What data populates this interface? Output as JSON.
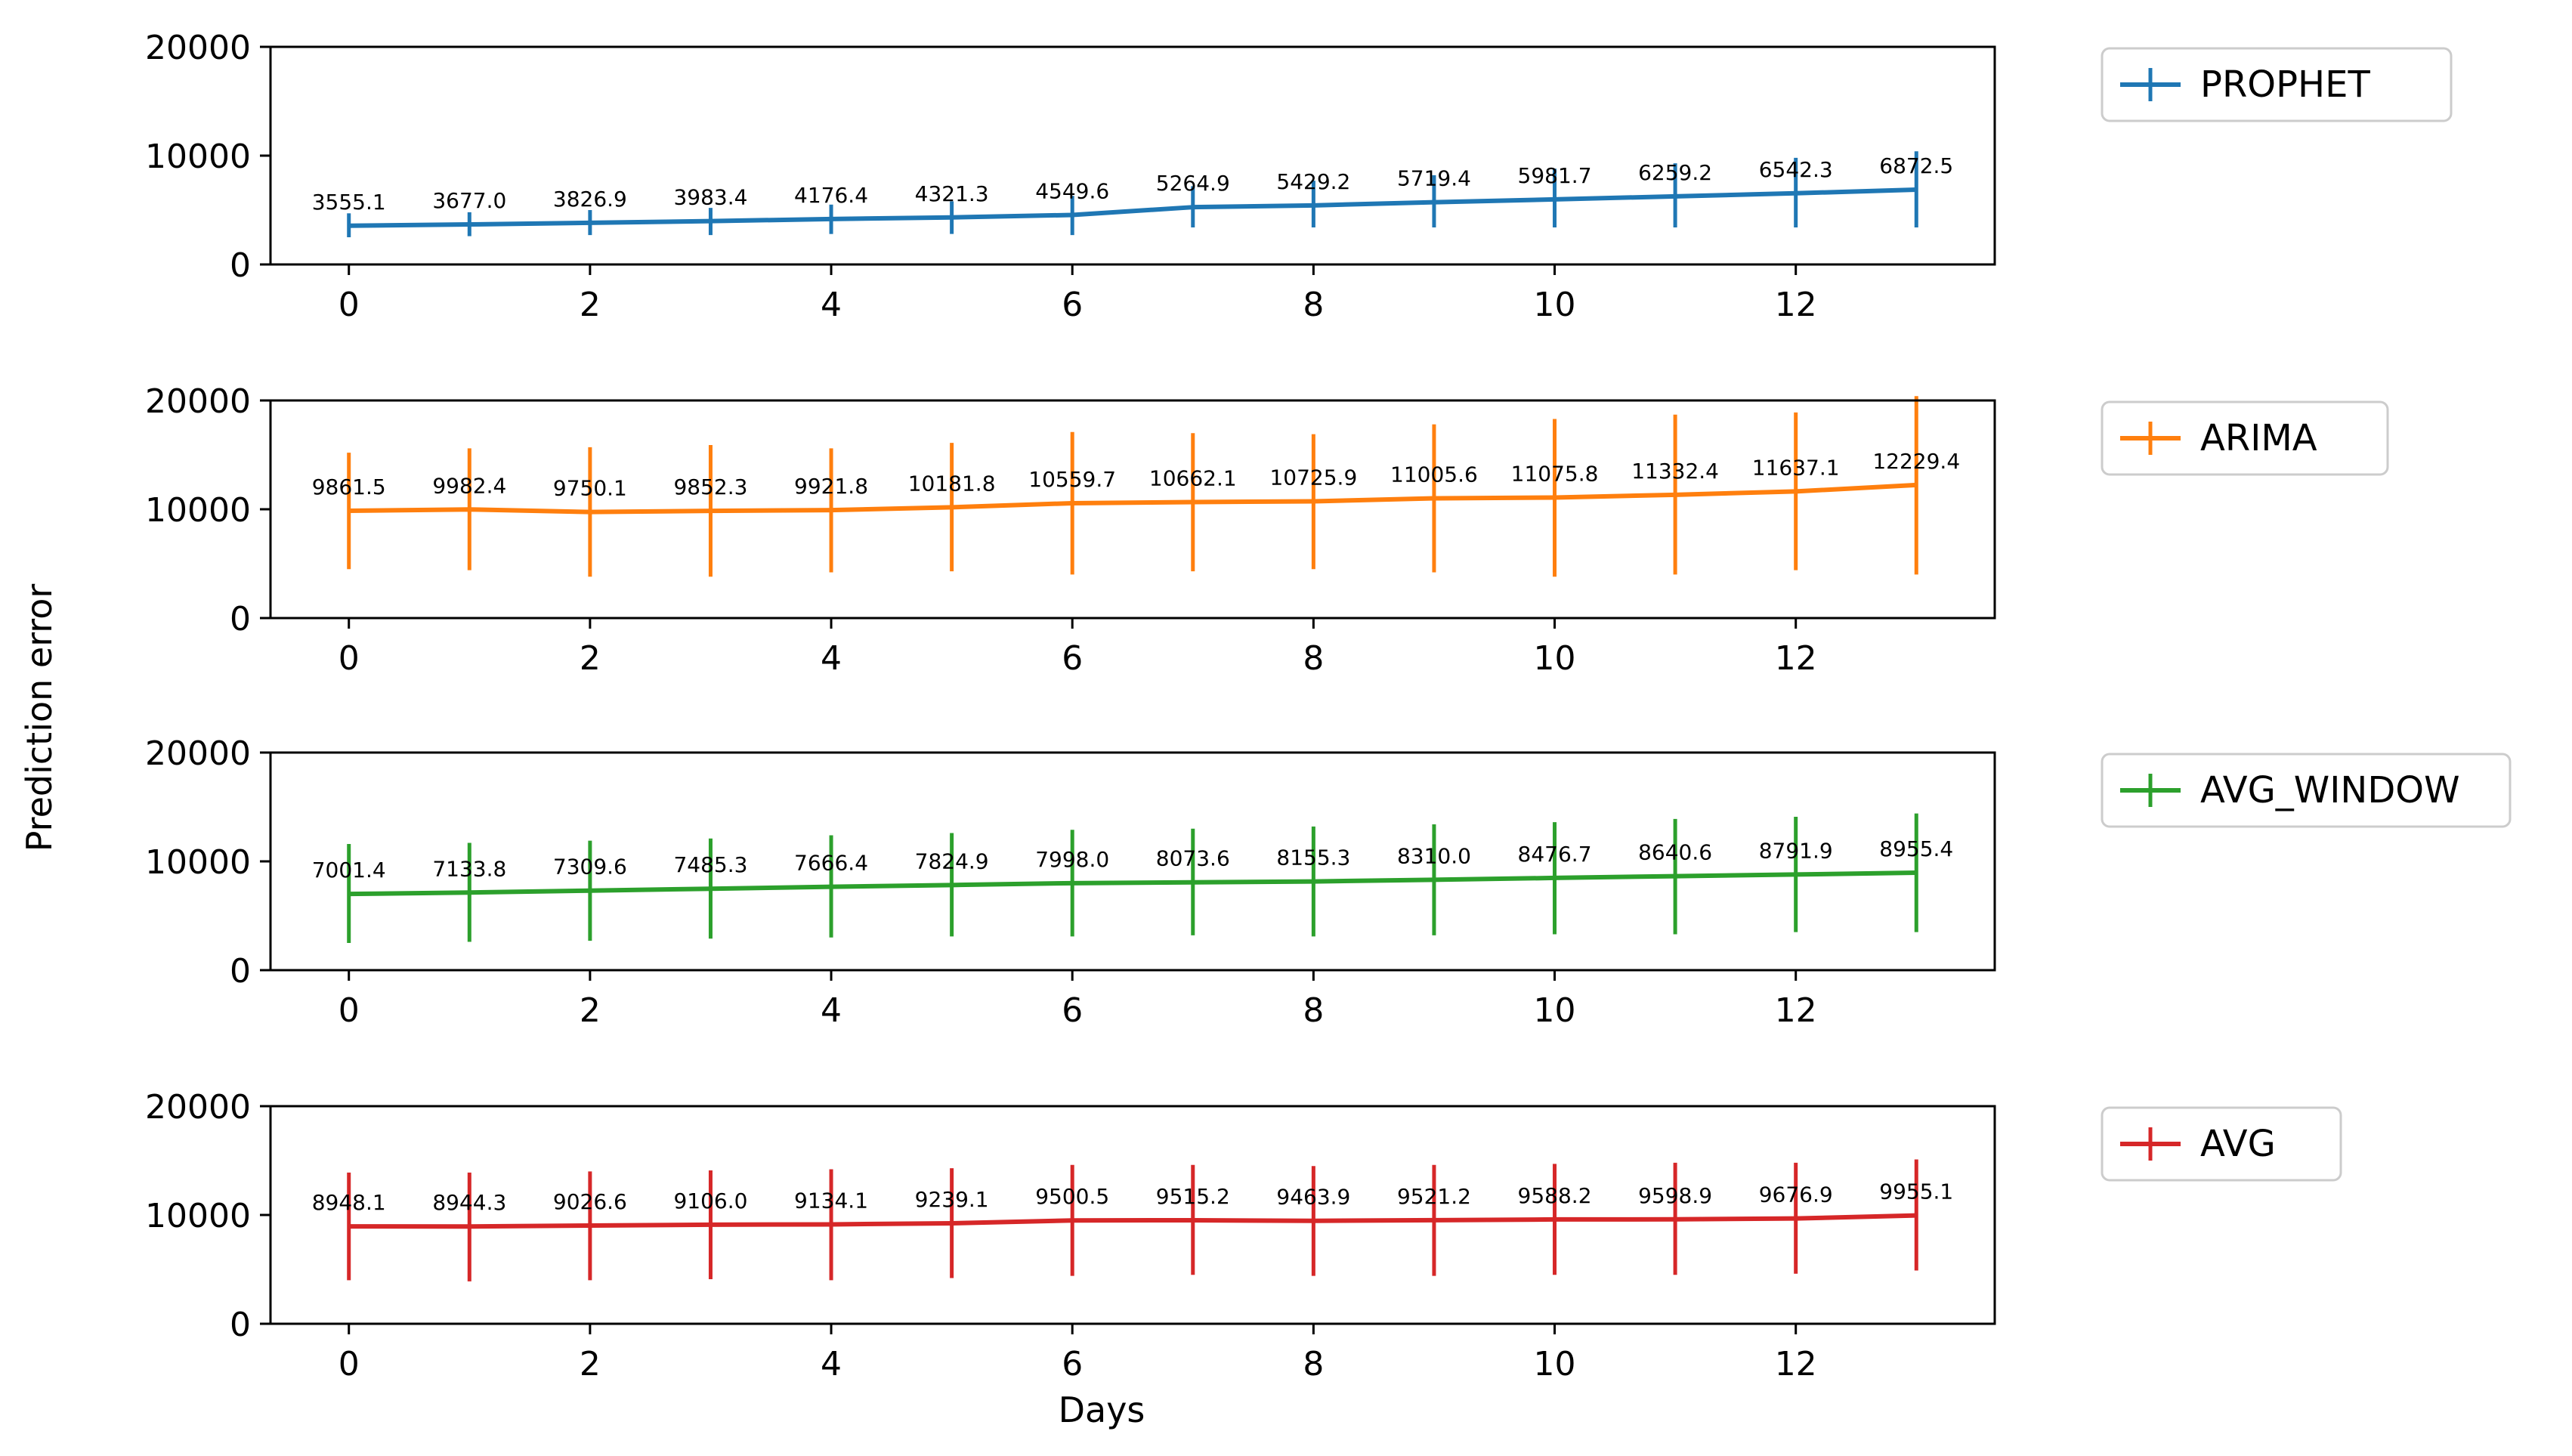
{
  "chart_data": {
    "type": "line",
    "xlabel": "Days",
    "ylabel": "Prediction error",
    "x": [
      0,
      1,
      2,
      3,
      4,
      5,
      6,
      7,
      8,
      9,
      10,
      11,
      12,
      13
    ],
    "xticks": [
      0,
      2,
      4,
      6,
      8,
      10,
      12
    ],
    "xlim": [
      -0.65,
      13.65
    ],
    "yticks": [
      0,
      10000,
      20000
    ],
    "ylim": [
      0,
      20000
    ],
    "legend_placement": "right of each panel",
    "grid": false,
    "series": [
      {
        "name": "PROPHET",
        "color": "#1f77b4",
        "values": [
          3555.1,
          3677.0,
          3826.9,
          3983.4,
          4176.4,
          4321.3,
          4549.6,
          5264.9,
          5429.2,
          5719.4,
          5981.7,
          6259.2,
          6542.3,
          6872.5
        ],
        "error_low": [
          2500,
          2600,
          2700,
          2700,
          2800,
          2800,
          2700,
          3400,
          3400,
          3400,
          3400,
          3400,
          3400,
          3400
        ],
        "error_high": [
          4700,
          4800,
          5000,
          5200,
          5500,
          5800,
          6300,
          7200,
          7700,
          8200,
          8800,
          9300,
          9800,
          10400
        ],
        "labels": [
          "3555.1",
          "3677.0",
          "3826.9",
          "3983.4",
          "4176.4",
          "4321.3",
          "4549.6",
          "5264.9",
          "5429.2",
          "5719.4",
          "5981.7",
          "6259.2",
          "6542.3",
          "6872.5"
        ]
      },
      {
        "name": "ARIMA",
        "color": "#ff7f0e",
        "values": [
          9861.5,
          9982.4,
          9750.1,
          9852.3,
          9921.8,
          10181.8,
          10559.7,
          10662.1,
          10725.9,
          11005.6,
          11075.8,
          11332.4,
          11637.1,
          12229.4
        ],
        "error_low": [
          4500,
          4400,
          3800,
          3800,
          4200,
          4300,
          4000,
          4300,
          4500,
          4200,
          3800,
          4000,
          4400,
          4000
        ],
        "error_high": [
          15200,
          15600,
          15700,
          15900,
          15600,
          16100,
          17100,
          17000,
          16900,
          17800,
          18300,
          18700,
          18900,
          20400
        ],
        "labels": [
          "9861.5",
          "9982.4",
          "9750.1",
          "9852.3",
          "9921.8",
          "10181.8",
          "10559.7",
          "10662.1",
          "10725.9",
          "11005.6",
          "11075.8",
          "11332.4",
          "11637.1",
          "12229.4"
        ]
      },
      {
        "name": "AVG_WINDOW",
        "color": "#2ca02c",
        "values": [
          7001.4,
          7133.8,
          7309.6,
          7485.3,
          7666.4,
          7824.9,
          7998.0,
          8073.6,
          8155.3,
          8310.0,
          8476.7,
          8640.6,
          8791.9,
          8955.4
        ],
        "error_low": [
          2500,
          2600,
          2700,
          2900,
          3000,
          3100,
          3100,
          3200,
          3100,
          3200,
          3300,
          3300,
          3500,
          3500
        ],
        "error_high": [
          11600,
          11700,
          11900,
          12100,
          12400,
          12600,
          12900,
          13000,
          13200,
          13400,
          13600,
          13900,
          14100,
          14400
        ],
        "labels": [
          "7001.4",
          "7133.8",
          "7309.6",
          "7485.3",
          "7666.4",
          "7824.9",
          "7998.0",
          "8073.6",
          "8155.3",
          "8310.0",
          "8476.7",
          "8640.6",
          "8791.9",
          "8955.4"
        ]
      },
      {
        "name": "AVG",
        "color": "#d62728",
        "values": [
          8948.1,
          8944.3,
          9026.6,
          9106.0,
          9134.1,
          9239.1,
          9500.5,
          9515.2,
          9463.9,
          9521.2,
          9588.2,
          9598.9,
          9676.9,
          9955.1
        ],
        "error_low": [
          4000,
          3900,
          4000,
          4100,
          4000,
          4200,
          4400,
          4500,
          4400,
          4400,
          4500,
          4500,
          4600,
          4900
        ],
        "error_high": [
          13900,
          13900,
          14000,
          14100,
          14200,
          14300,
          14600,
          14600,
          14500,
          14600,
          14700,
          14800,
          14800,
          15100
        ],
        "labels": [
          "8948.1",
          "8944.3",
          "9026.6",
          "9106.0",
          "9134.1",
          "9239.1",
          "9500.5",
          "9515.2",
          "9463.9",
          "9521.2",
          "9588.2",
          "9598.9",
          "9676.9",
          "9955.1"
        ]
      }
    ]
  }
}
